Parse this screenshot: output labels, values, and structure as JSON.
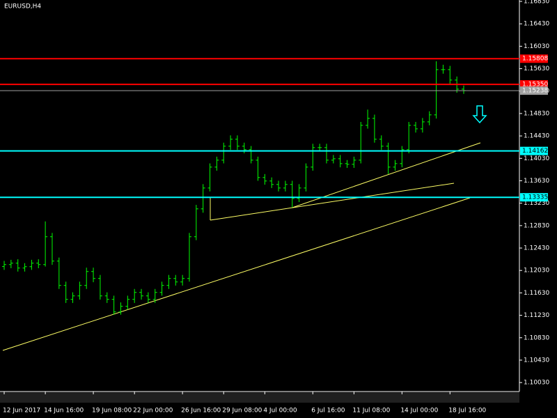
{
  "chart_data": {
    "type": "ohlc",
    "title": "EURUSD,H4",
    "color": "#00ff00",
    "categories": [
      "12 Jun 2017",
      null,
      null,
      null,
      null,
      null,
      "14 Jun 16:00",
      null,
      null,
      null,
      null,
      null,
      null,
      "19 Jun 08:00",
      null,
      null,
      null,
      null,
      null,
      "22 Jun 00:00",
      null,
      null,
      null,
      null,
      null,
      null,
      "26 Jun 16:00",
      null,
      null,
      null,
      null,
      null,
      "29 Jun 08:00",
      null,
      null,
      null,
      null,
      null,
      "4 Jul 00:00",
      null,
      null,
      null,
      null,
      null,
      null,
      "6 Jul 16:00",
      null,
      null,
      null,
      null,
      null,
      "11 Jul 08:00",
      null,
      null,
      null,
      null,
      null,
      null,
      "14 Jul 00:00",
      null,
      null,
      null,
      null,
      null,
      null,
      "18 Jul 16:00",
      null,
      null
    ],
    "open": [
      1.121,
      1.12135,
      1.1216,
      1.12073,
      1.12098,
      1.1216,
      1.12135,
      1.12632,
      1.12197,
      1.11763,
      1.11514,
      1.11576,
      1.11763,
      1.12011,
      1.11887,
      1.11576,
      1.11514,
      1.11291,
      1.1139,
      1.11514,
      1.11638,
      1.11576,
      1.11514,
      1.11638,
      1.11763,
      1.11887,
      1.11825,
      1.11887,
      1.12632,
      1.13129,
      1.13501,
      1.13874,
      1.13998,
      1.14247,
      1.14371,
      1.14247,
      1.14185,
      1.13998,
      1.13688,
      1.13626,
      1.13564,
      1.13501,
      1.13564,
      1.13315,
      1.13501,
      1.13874,
      1.14222,
      1.14222,
      1.13998,
      1.14023,
      1.13936,
      1.13924,
      1.13998,
      1.14619,
      1.14743,
      1.14371,
      1.14247,
      1.13874,
      1.13936,
      1.14185,
      1.14619,
      1.14557,
      1.14681,
      1.14806,
      1.15613,
      1.15613,
      1.15427,
      1.15265
    ],
    "high": [
      1.122,
      1.1222,
      1.1223,
      1.1216,
      1.1222,
      1.1223,
      1.12905,
      1.127,
      1.1226,
      1.1183,
      1.1164,
      1.1183,
      1.1208,
      1.1208,
      1.1195,
      1.1164,
      1.1158,
      1.1146,
      1.1158,
      1.117,
      1.117,
      1.1164,
      1.117,
      1.1183,
      1.1195,
      1.1195,
      1.1195,
      1.127,
      1.132,
      1.1357,
      1.1394,
      1.1406,
      1.1431,
      1.1444,
      1.1444,
      1.1431,
      1.1425,
      1.1406,
      1.1375,
      1.1369,
      1.1363,
      1.1363,
      1.1363,
      1.1357,
      1.1394,
      1.1429,
      1.1429,
      1.1429,
      1.1409,
      1.1409,
      1.14,
      1.1406,
      1.1468,
      1.149,
      1.1481,
      1.1444,
      1.1431,
      1.14,
      1.1425,
      1.1468,
      1.1468,
      1.1475,
      1.1487,
      1.15762,
      1.157,
      1.1568,
      1.1549,
      1.1533
    ],
    "low": [
      1.1204,
      1.1207,
      1.1201,
      1.1201,
      1.1204,
      1.1207,
      1.121,
      1.1213,
      1.117,
      1.1145,
      1.1145,
      1.1151,
      1.117,
      1.1182,
      1.1151,
      1.1145,
      1.11241,
      1.11241,
      1.1133,
      1.1145,
      1.1151,
      1.1145,
      1.1145,
      1.1158,
      1.117,
      1.1176,
      1.1176,
      1.1183,
      1.1257,
      1.1306,
      1.1344,
      1.1381,
      1.1394,
      1.1418,
      1.1418,
      1.1412,
      1.1394,
      1.1363,
      1.1356,
      1.135,
      1.1344,
      1.1344,
      1.13154,
      1.1325,
      1.1344,
      1.1381,
      1.1416,
      1.1394,
      1.1394,
      1.1387,
      1.1386,
      1.1386,
      1.1394,
      1.1456,
      1.1431,
      1.1418,
      1.1375,
      1.1381,
      1.1387,
      1.1412,
      1.1449,
      1.1449,
      1.1462,
      1.1474,
      1.1554,
      1.1536,
      1.152,
      1.1518
    ],
    "close": [
      1.12135,
      1.1216,
      1.12073,
      1.12098,
      1.1216,
      1.12135,
      1.12632,
      1.12197,
      1.11763,
      1.11514,
      1.11576,
      1.11763,
      1.12011,
      1.11887,
      1.11576,
      1.11514,
      1.11291,
      1.1139,
      1.11514,
      1.11638,
      1.11576,
      1.11514,
      1.11638,
      1.11763,
      1.11887,
      1.11825,
      1.11887,
      1.12632,
      1.13129,
      1.13501,
      1.13874,
      1.13998,
      1.14247,
      1.14371,
      1.14247,
      1.14185,
      1.13998,
      1.13688,
      1.13626,
      1.13564,
      1.13501,
      1.13564,
      1.13315,
      1.13501,
      1.13874,
      1.14222,
      1.14222,
      1.13998,
      1.14023,
      1.13936,
      1.13924,
      1.13998,
      1.14619,
      1.14743,
      1.14371,
      1.14247,
      1.13874,
      1.13936,
      1.14185,
      1.14619,
      1.14557,
      1.14681,
      1.14806,
      1.15613,
      1.15613,
      1.15427,
      1.15265,
      1.15238
    ],
    "ylim": [
      1.0987,
      1.16855
    ],
    "yticks": [
      {
        "value": 1.1683,
        "label": "1.16830"
      },
      {
        "value": 1.1643,
        "label": "1.16430"
      },
      {
        "value": 1.1603,
        "label": "1.16030"
      },
      {
        "value": 1.1563,
        "label": "1.15630"
      },
      {
        "value": 1.1523,
        "label": "1.15230"
      },
      {
        "value": 1.1483,
        "label": "1.14830"
      },
      {
        "value": 1.1443,
        "label": "1.14430"
      },
      {
        "value": 1.1403,
        "label": "1.14030"
      },
      {
        "value": 1.1363,
        "label": "1.13630"
      },
      {
        "value": 1.1323,
        "label": "1.13230"
      },
      {
        "value": 1.1283,
        "label": "1.12830"
      },
      {
        "value": 1.1243,
        "label": "1.12430"
      },
      {
        "value": 1.1203,
        "label": "1.12030"
      },
      {
        "value": 1.1163,
        "label": "1.11630"
      },
      {
        "value": 1.1123,
        "label": "1.11230"
      },
      {
        "value": 1.1083,
        "label": "1.10830"
      },
      {
        "value": 1.1043,
        "label": "1.10430"
      },
      {
        "value": 1.1003,
        "label": "1.10030"
      }
    ],
    "levels": [
      {
        "value": 1.15808,
        "label": "1.15808",
        "color": "#ff0000"
      },
      {
        "value": 1.1535,
        "label": "1.15350",
        "color": "#ff0000"
      },
      {
        "value": 1.15238,
        "label": "1.15238",
        "color": "#a0a0a0"
      },
      {
        "value": 1.14162,
        "label": "1.14162",
        "color": "#00ffff"
      },
      {
        "value": 1.13335,
        "label": "1.13335",
        "color": "#00ffff"
      }
    ],
    "grid": false
  }
}
